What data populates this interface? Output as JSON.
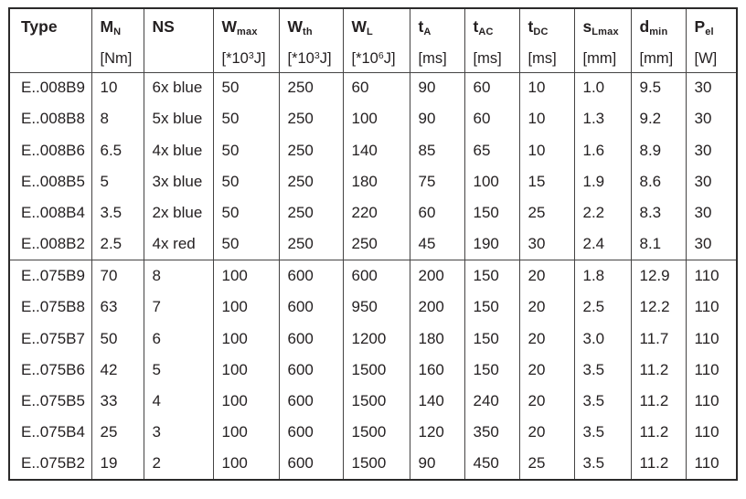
{
  "table": {
    "name": "brake-specification-table",
    "columns": [
      {
        "key": "type",
        "base": "Type",
        "sub": "",
        "unit": ""
      },
      {
        "key": "mn",
        "base": "M",
        "sub": "N",
        "unit": "[Nm]"
      },
      {
        "key": "ns",
        "base": "NS",
        "sub": "",
        "unit": ""
      },
      {
        "key": "wmax",
        "base": "W",
        "sub": "max",
        "unit": "[*10|3|J]"
      },
      {
        "key": "wth",
        "base": "W",
        "sub": "th",
        "unit": "[*10|3|J]"
      },
      {
        "key": "wl",
        "base": "W",
        "sub": "L",
        "unit": "[*10|6|J]"
      },
      {
        "key": "ta",
        "base": "t",
        "sub": "A",
        "unit": "[ms]"
      },
      {
        "key": "tac",
        "base": "t",
        "sub": "AC",
        "unit": "[ms]"
      },
      {
        "key": "tdc",
        "base": "t",
        "sub": "DC",
        "unit": "[ms]"
      },
      {
        "key": "slmax",
        "base": "s",
        "sub": "Lmax",
        "unit": "[mm]"
      },
      {
        "key": "dmin",
        "base": "d",
        "sub": "min",
        "unit": "[mm]"
      },
      {
        "key": "pel",
        "base": "P",
        "sub": "el",
        "unit": "[W]"
      }
    ],
    "groups": [
      {
        "rows": [
          [
            "E..008B9",
            "10",
            "6x blue",
            "50",
            "250",
            "60",
            "90",
            "60",
            "10",
            "1.0",
            "9.5",
            "30"
          ],
          [
            "E..008B8",
            "8",
            "5x blue",
            "50",
            "250",
            "100",
            "90",
            "60",
            "10",
            "1.3",
            "9.2",
            "30"
          ],
          [
            "E..008B6",
            "6.5",
            "4x blue",
            "50",
            "250",
            "140",
            "85",
            "65",
            "10",
            "1.6",
            "8.9",
            "30"
          ],
          [
            "E..008B5",
            "5",
            "3x blue",
            "50",
            "250",
            "180",
            "75",
            "100",
            "15",
            "1.9",
            "8.6",
            "30"
          ],
          [
            "E..008B4",
            "3.5",
            "2x blue",
            "50",
            "250",
            "220",
            "60",
            "150",
            "25",
            "2.2",
            "8.3",
            "30"
          ],
          [
            "E..008B2",
            "2.5",
            "4x red",
            "50",
            "250",
            "250",
            "45",
            "190",
            "30",
            "2.4",
            "8.1",
            "30"
          ]
        ]
      },
      {
        "rows": [
          [
            "E..075B9",
            "70",
            "8",
            "100",
            "600",
            "600",
            "200",
            "150",
            "20",
            "1.8",
            "12.9",
            "110"
          ],
          [
            "E..075B8",
            "63",
            "7",
            "100",
            "600",
            "950",
            "200",
            "150",
            "20",
            "2.5",
            "12.2",
            "110"
          ],
          [
            "E..075B7",
            "50",
            "6",
            "100",
            "600",
            "1200",
            "180",
            "150",
            "20",
            "3.0",
            "11.7",
            "110"
          ],
          [
            "E..075B6",
            "42",
            "5",
            "100",
            "600",
            "1500",
            "160",
            "150",
            "20",
            "3.5",
            "11.2",
            "110"
          ],
          [
            "E..075B5",
            "33",
            "4",
            "100",
            "600",
            "1500",
            "140",
            "240",
            "20",
            "3.5",
            "11.2",
            "110"
          ],
          [
            "E..075B4",
            "25",
            "3",
            "100",
            "600",
            "1500",
            "120",
            "350",
            "20",
            "3.5",
            "11.2",
            "110"
          ],
          [
            "E..075B2",
            "19",
            "2",
            "100",
            "600",
            "1500",
            "90",
            "450",
            "25",
            "3.5",
            "11.2",
            "110"
          ]
        ]
      }
    ]
  }
}
